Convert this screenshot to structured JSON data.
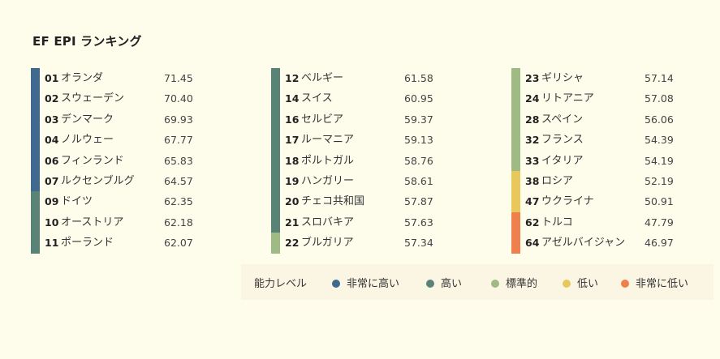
{
  "title": "EF EPI ランキング",
  "colors": {
    "very_high": "#40698f",
    "high": "#5a8378",
    "moderate": "#9fba82",
    "low": "#e8c85a",
    "very_low": "#f07f4e"
  },
  "legend": {
    "title": "能力レベル",
    "items": [
      {
        "label": "非常に高い",
        "level": "very_high"
      },
      {
        "label": "高い",
        "level": "high"
      },
      {
        "label": "標準的",
        "level": "moderate"
      },
      {
        "label": "低い",
        "level": "low"
      },
      {
        "label": "非常に低い",
        "level": "very_low"
      }
    ]
  },
  "chart_data": {
    "type": "table",
    "title": "EF EPI ランキング",
    "columns": [
      [
        {
          "rank": "01",
          "country": "オランダ",
          "score": "71.45",
          "level": "very_high"
        },
        {
          "rank": "02",
          "country": "スウェーデン",
          "score": "70.40",
          "level": "very_high"
        },
        {
          "rank": "03",
          "country": "デンマーク",
          "score": "69.93",
          "level": "very_high"
        },
        {
          "rank": "04",
          "country": "ノルウェー",
          "score": "67.77",
          "level": "very_high"
        },
        {
          "rank": "06",
          "country": "フィンランド",
          "score": "65.83",
          "level": "very_high"
        },
        {
          "rank": "07",
          "country": "ルクセンブルグ",
          "score": "64.57",
          "level": "very_high"
        },
        {
          "rank": "09",
          "country": "ドイツ",
          "score": "62.35",
          "level": "high"
        },
        {
          "rank": "10",
          "country": "オーストリア",
          "score": "62.18",
          "level": "high"
        },
        {
          "rank": "11",
          "country": "ポーランド",
          "score": "62.07",
          "level": "high"
        }
      ],
      [
        {
          "rank": "12",
          "country": "ベルギー",
          "score": "61.58",
          "level": "high"
        },
        {
          "rank": "14",
          "country": "スイス",
          "score": "60.95",
          "level": "high"
        },
        {
          "rank": "16",
          "country": "セルビア",
          "score": "59.37",
          "level": "high"
        },
        {
          "rank": "17",
          "country": "ルーマニア",
          "score": "59.13",
          "level": "high"
        },
        {
          "rank": "18",
          "country": "ポルトガル",
          "score": "58.76",
          "level": "high"
        },
        {
          "rank": "19",
          "country": "ハンガリー",
          "score": "58.61",
          "level": "high"
        },
        {
          "rank": "20",
          "country": "チェコ共和国",
          "score": "57.87",
          "level": "high"
        },
        {
          "rank": "21",
          "country": "スロバキア",
          "score": "57.63",
          "level": "high"
        },
        {
          "rank": "22",
          "country": "ブルガリア",
          "score": "57.34",
          "level": "moderate"
        }
      ],
      [
        {
          "rank": "23",
          "country": "ギリシャ",
          "score": "57.14",
          "level": "moderate"
        },
        {
          "rank": "24",
          "country": "リトアニア",
          "score": "57.08",
          "level": "moderate"
        },
        {
          "rank": "28",
          "country": "スペイン",
          "score": "56.06",
          "level": "moderate"
        },
        {
          "rank": "32",
          "country": "フランス",
          "score": "54.39",
          "level": "moderate"
        },
        {
          "rank": "33",
          "country": "イタリア",
          "score": "54.19",
          "level": "moderate"
        },
        {
          "rank": "38",
          "country": "ロシア",
          "score": "52.19",
          "level": "low"
        },
        {
          "rank": "47",
          "country": "ウクライナ",
          "score": "50.91",
          "level": "low"
        },
        {
          "rank": "62",
          "country": "トルコ",
          "score": "47.79",
          "level": "very_low"
        },
        {
          "rank": "64",
          "country": "アゼルバイジャン",
          "score": "46.97",
          "level": "very_low"
        }
      ]
    ]
  }
}
